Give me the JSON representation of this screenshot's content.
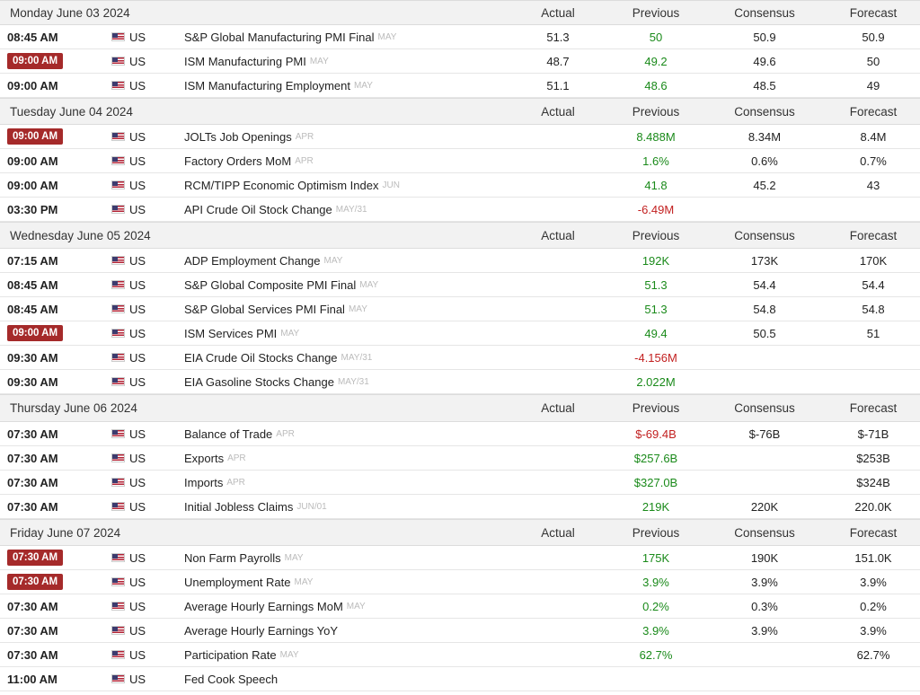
{
  "columns": {
    "actual": "Actual",
    "previous": "Previous",
    "consensus": "Consensus",
    "forecast": "Forecast"
  },
  "colors": {
    "badge": "#a52a2a",
    "positive": "#1a8a1a",
    "negative": "#c21f1f"
  },
  "days": [
    {
      "date": "Monday June 03 2024",
      "events": [
        {
          "time": "08:45 AM",
          "highlight": false,
          "country": "US",
          "event": "S&P Global Manufacturing PMI Final",
          "ref": "MAY",
          "actual": "51.3",
          "previous": "50",
          "prev_trend": "up",
          "consensus": "50.9",
          "forecast": "50.9"
        },
        {
          "time": "09:00 AM",
          "highlight": true,
          "country": "US",
          "event": "ISM Manufacturing PMI",
          "ref": "MAY",
          "actual": "48.7",
          "previous": "49.2",
          "prev_trend": "up",
          "consensus": "49.6",
          "forecast": "50"
        },
        {
          "time": "09:00 AM",
          "highlight": false,
          "country": "US",
          "event": "ISM Manufacturing Employment",
          "ref": "MAY",
          "actual": "51.1",
          "previous": "48.6",
          "prev_trend": "up",
          "consensus": "48.5",
          "forecast": "49"
        }
      ]
    },
    {
      "date": "Tuesday June 04 2024",
      "events": [
        {
          "time": "09:00 AM",
          "highlight": true,
          "country": "US",
          "event": "JOLTs Job Openings",
          "ref": "APR",
          "actual": "",
          "previous": "8.488M",
          "prev_trend": "up",
          "consensus": "8.34M",
          "forecast": "8.4M"
        },
        {
          "time": "09:00 AM",
          "highlight": false,
          "country": "US",
          "event": "Factory Orders MoM",
          "ref": "APR",
          "actual": "",
          "previous": "1.6%",
          "prev_trend": "up",
          "consensus": "0.6%",
          "forecast": "0.7%"
        },
        {
          "time": "09:00 AM",
          "highlight": false,
          "country": "US",
          "event": "RCM/TIPP Economic Optimism Index",
          "ref": "JUN",
          "actual": "",
          "previous": "41.8",
          "prev_trend": "up",
          "consensus": "45.2",
          "forecast": "43"
        },
        {
          "time": "03:30 PM",
          "highlight": false,
          "country": "US",
          "event": "API Crude Oil Stock Change",
          "ref": "MAY/31",
          "actual": "",
          "previous": "-6.49M",
          "prev_trend": "down",
          "consensus": "",
          "forecast": ""
        }
      ]
    },
    {
      "date": "Wednesday June 05 2024",
      "events": [
        {
          "time": "07:15 AM",
          "highlight": false,
          "country": "US",
          "event": "ADP Employment Change",
          "ref": "MAY",
          "actual": "",
          "previous": "192K",
          "prev_trend": "up",
          "consensus": "173K",
          "forecast": "170K"
        },
        {
          "time": "08:45 AM",
          "highlight": false,
          "country": "US",
          "event": "S&P Global Composite PMI Final",
          "ref": "MAY",
          "actual": "",
          "previous": "51.3",
          "prev_trend": "up",
          "consensus": "54.4",
          "forecast": "54.4"
        },
        {
          "time": "08:45 AM",
          "highlight": false,
          "country": "US",
          "event": "S&P Global Services PMI Final",
          "ref": "MAY",
          "actual": "",
          "previous": "51.3",
          "prev_trend": "up",
          "consensus": "54.8",
          "forecast": "54.8"
        },
        {
          "time": "09:00 AM",
          "highlight": true,
          "country": "US",
          "event": "ISM Services PMI",
          "ref": "MAY",
          "actual": "",
          "previous": "49.4",
          "prev_trend": "up",
          "consensus": "50.5",
          "forecast": "51"
        },
        {
          "time": "09:30 AM",
          "highlight": false,
          "country": "US",
          "event": "EIA Crude Oil Stocks Change",
          "ref": "MAY/31",
          "actual": "",
          "previous": "-4.156M",
          "prev_trend": "down",
          "consensus": "",
          "forecast": ""
        },
        {
          "time": "09:30 AM",
          "highlight": false,
          "country": "US",
          "event": "EIA Gasoline Stocks Change",
          "ref": "MAY/31",
          "actual": "",
          "previous": "2.022M",
          "prev_trend": "up",
          "consensus": "",
          "forecast": ""
        }
      ]
    },
    {
      "date": "Thursday June 06 2024",
      "events": [
        {
          "time": "07:30 AM",
          "highlight": false,
          "country": "US",
          "event": "Balance of Trade",
          "ref": "APR",
          "actual": "",
          "previous": "$-69.4B",
          "prev_trend": "down",
          "consensus": "$-76B",
          "forecast": "$-71B"
        },
        {
          "time": "07:30 AM",
          "highlight": false,
          "country": "US",
          "event": "Exports",
          "ref": "APR",
          "actual": "",
          "previous": "$257.6B",
          "prev_trend": "up",
          "consensus": "",
          "forecast": "$253B"
        },
        {
          "time": "07:30 AM",
          "highlight": false,
          "country": "US",
          "event": "Imports",
          "ref": "APR",
          "actual": "",
          "previous": "$327.0B",
          "prev_trend": "up",
          "consensus": "",
          "forecast": "$324B"
        },
        {
          "time": "07:30 AM",
          "highlight": false,
          "country": "US",
          "event": "Initial Jobless Claims",
          "ref": "JUN/01",
          "actual": "",
          "previous": "219K",
          "prev_trend": "up",
          "consensus": "220K",
          "forecast": "220.0K"
        }
      ]
    },
    {
      "date": "Friday June 07 2024",
      "events": [
        {
          "time": "07:30 AM",
          "highlight": true,
          "country": "US",
          "event": "Non Farm Payrolls",
          "ref": "MAY",
          "actual": "",
          "previous": "175K",
          "prev_trend": "up",
          "consensus": "190K",
          "forecast": "151.0K"
        },
        {
          "time": "07:30 AM",
          "highlight": true,
          "country": "US",
          "event": "Unemployment Rate",
          "ref": "MAY",
          "actual": "",
          "previous": "3.9%",
          "prev_trend": "up",
          "consensus": "3.9%",
          "forecast": "3.9%"
        },
        {
          "time": "07:30 AM",
          "highlight": false,
          "country": "US",
          "event": "Average Hourly Earnings MoM",
          "ref": "MAY",
          "actual": "",
          "previous": "0.2%",
          "prev_trend": "up",
          "consensus": "0.3%",
          "forecast": "0.2%"
        },
        {
          "time": "07:30 AM",
          "highlight": false,
          "country": "US",
          "event": "Average Hourly Earnings YoY",
          "ref": "",
          "actual": "",
          "previous": "3.9%",
          "prev_trend": "up",
          "consensus": "3.9%",
          "forecast": "3.9%"
        },
        {
          "time": "07:30 AM",
          "highlight": false,
          "country": "US",
          "event": "Participation Rate",
          "ref": "MAY",
          "actual": "",
          "previous": "62.7%",
          "prev_trend": "up",
          "consensus": "",
          "forecast": "62.7%"
        },
        {
          "time": "11:00 AM",
          "highlight": false,
          "country": "US",
          "event": "Fed Cook Speech",
          "ref": "",
          "actual": "",
          "previous": "",
          "prev_trend": "neutral",
          "consensus": "",
          "forecast": ""
        }
      ]
    }
  ]
}
